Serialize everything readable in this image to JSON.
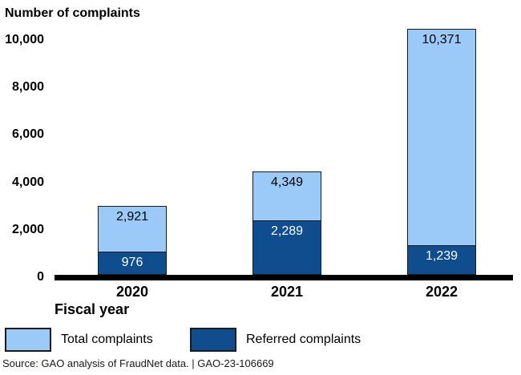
{
  "chart_data": {
    "type": "bar",
    "subtype": "overlay-stacked-bar",
    "title": "Number of complaints",
    "xlabel": "Fiscal year",
    "ylabel": "Number of complaints",
    "categories": [
      "2020",
      "2021",
      "2022"
    ],
    "series": [
      {
        "name": "Total complaints",
        "color": "#9CCAF8",
        "text_color": "#000000",
        "values": [
          2921,
          4349,
          10371
        ],
        "labels": [
          "2,921",
          "4,349",
          "10,371"
        ]
      },
      {
        "name": "Referred complaints",
        "color": "#0F4D8F",
        "text_color": "#ffffff",
        "values": [
          976,
          2289,
          1239
        ],
        "labels": [
          "976",
          "2,289",
          "1,239"
        ]
      }
    ],
    "ylim": [
      0,
      10500
    ],
    "yticks": [
      {
        "value": 0,
        "label": "0"
      },
      {
        "value": 2000,
        "label": "2,000"
      },
      {
        "value": 4000,
        "label": "4,000"
      },
      {
        "value": 6000,
        "label": "6,000"
      },
      {
        "value": 8000,
        "label": "8,000"
      },
      {
        "value": 10000,
        "label": "10,000"
      }
    ],
    "grid": false,
    "legend_position": "bottom"
  },
  "source_line": "Source: GAO analysis of FraudNet data.  |  GAO-23-106669"
}
